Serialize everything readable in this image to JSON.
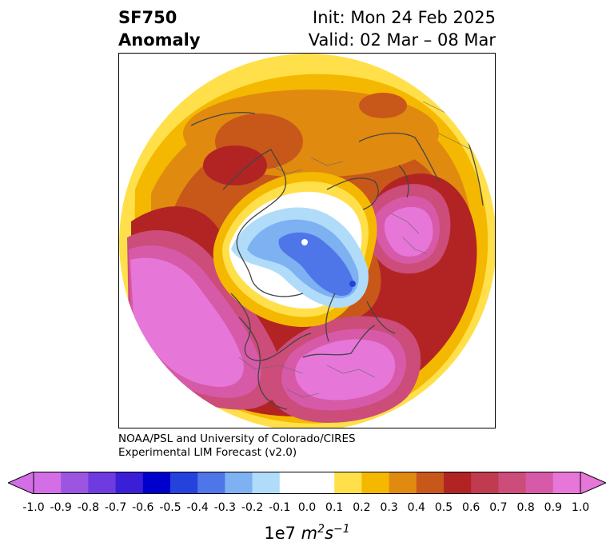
{
  "header": {
    "title_line1": "SF750",
    "title_line2": "Anomaly",
    "init": "Init: Mon 24 Feb 2025",
    "valid": "Valid: 02 Mar – 08 Mar"
  },
  "credit": {
    "line1": "NOAA/PSL and University of Colorado/CIRES",
    "line2": "Experimental LIM Forecast (v2.0)"
  },
  "colorbar": {
    "ticks": [
      "-1.0",
      "-0.9",
      "-0.8",
      "-0.7",
      "-0.6",
      "-0.5",
      "-0.4",
      "-0.3",
      "-0.2",
      "-0.1",
      "0.0",
      "0.1",
      "0.2",
      "0.3",
      "0.4",
      "0.5",
      "0.6",
      "0.7",
      "0.8",
      "0.9",
      "1.0"
    ],
    "colors": [
      "#d36ee6",
      "#9b55e0",
      "#6e3be0",
      "#3a1fd6",
      "#0000cc",
      "#2642dc",
      "#4f76e8",
      "#7db1f2",
      "#b0dcfa",
      "#ffffff",
      "#ffffff",
      "#ffe04a",
      "#f5b800",
      "#e08a10",
      "#c8581a",
      "#b22424",
      "#c03a50",
      "#cc4c7a",
      "#d65aa8",
      "#e676d8"
    ],
    "under_color": "#d36ee6",
    "over_color": "#e676d8",
    "units_prefix": "1e7",
    "units_m": "m",
    "units_m_exp": "2",
    "units_s": "s",
    "units_s_exp": "−1"
  }
}
